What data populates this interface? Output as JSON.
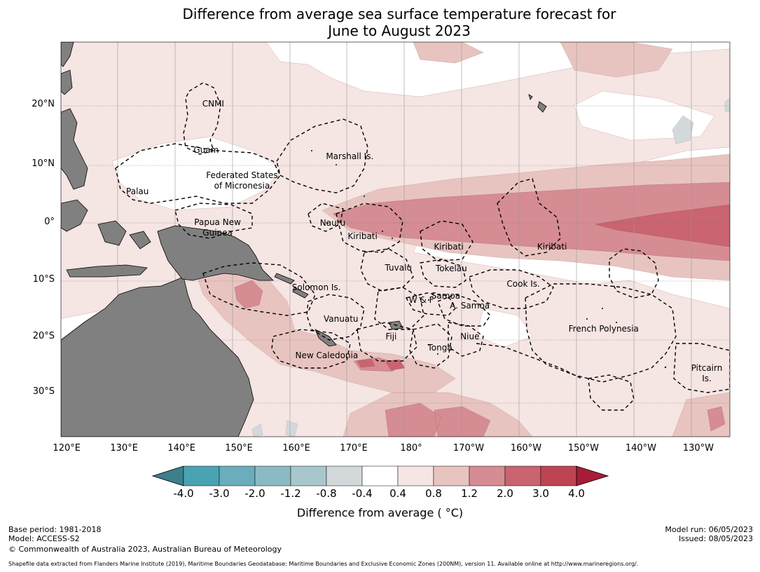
{
  "title": {
    "line1": "Difference from average sea surface temperature forecast for",
    "line2": "June to August 2023"
  },
  "map": {
    "lat_labels": [
      {
        "text": "20°N",
        "lat": 20
      },
      {
        "text": "10°N",
        "lat": 10
      },
      {
        "text": "0°",
        "lat": 0
      },
      {
        "text": "10°S",
        "lat": -10
      },
      {
        "text": "20°S",
        "lat": -20
      },
      {
        "text": "30°S",
        "lat": -30
      }
    ],
    "lon_labels": [
      {
        "text": "120°E",
        "lon": 120
      },
      {
        "text": "130°E",
        "lon": 130
      },
      {
        "text": "140°E",
        "lon": 140
      },
      {
        "text": "150°E",
        "lon": 150
      },
      {
        "text": "160°E",
        "lon": 160
      },
      {
        "text": "170°E",
        "lon": 170
      },
      {
        "text": "180°",
        "lon": 180
      },
      {
        "text": "170°W",
        "lon": 190
      },
      {
        "text": "160°W",
        "lon": 200
      },
      {
        "text": "150°W",
        "lon": 210
      },
      {
        "text": "140°W",
        "lon": 220
      },
      {
        "text": "130°W",
        "lon": 230
      }
    ],
    "places": [
      {
        "name": "CNMI",
        "lon": 145.5,
        "lat": 20.2
      },
      {
        "name": "Guam",
        "lon": 144.3,
        "lat": 12.4
      },
      {
        "name": "Marshall Is.",
        "lon": 169.3,
        "lat": 11.3
      },
      {
        "name": "Federated States\nof Micronesia",
        "lon": 150.5,
        "lat": 7.2
      },
      {
        "name": "Palau",
        "lon": 132.3,
        "lat": 5.3
      },
      {
        "name": "Papua New\nGuinea",
        "lon": 146.3,
        "lat": -0.8
      },
      {
        "name": "Nauru",
        "lon": 166.3,
        "lat": 0.0
      },
      {
        "name": "Kiribati",
        "lon": 171.5,
        "lat": -2.3
      },
      {
        "name": "Kiribati",
        "lon": 186.5,
        "lat": -4.2
      },
      {
        "name": "Kiribati",
        "lon": 204.5,
        "lat": -4.2
      },
      {
        "name": "Tuvalu",
        "lon": 177.8,
        "lat": -7.8
      },
      {
        "name": "Tokelau",
        "lon": 187.0,
        "lat": -8.0
      },
      {
        "name": "Solomon Is.",
        "lon": 163.5,
        "lat": -11.2
      },
      {
        "name": "Cook Is.",
        "lon": 199.5,
        "lat": -10.7
      },
      {
        "name": "Samoa",
        "lon": 186.0,
        "lat": -12.7
      },
      {
        "name": "W & F",
        "lon": 181.8,
        "lat": -13.5
      },
      {
        "name": "A. Samoa",
        "lon": 190.2,
        "lat": -14.5
      },
      {
        "name": "Vanuatu",
        "lon": 167.8,
        "lat": -16.8
      },
      {
        "name": "French Polynesia",
        "lon": 213.5,
        "lat": -18.6
      },
      {
        "name": "Fiji",
        "lon": 176.5,
        "lat": -19.9
      },
      {
        "name": "Niue",
        "lon": 190.2,
        "lat": -19.9
      },
      {
        "name": "Tonga",
        "lon": 185.0,
        "lat": -22.0
      },
      {
        "name": "New Caledonia",
        "lon": 165.3,
        "lat": -23.3
      },
      {
        "name": "Pitcairn\nIs.",
        "lon": 231.5,
        "lat": -26.6
      }
    ]
  },
  "legend": {
    "title": "Difference from average ( °C)",
    "ticks": [
      "-4.0",
      "-3.0",
      "-2.0",
      "-1.2",
      "-0.8",
      "-0.4",
      "0.4",
      "0.8",
      "1.2",
      "2.0",
      "3.0",
      "4.0"
    ],
    "colors": [
      "#3d7f8b",
      "#4aa3b3",
      "#6aadbb",
      "#8cbac4",
      "#a8c7cc",
      "#d3d9da",
      "#ffffff",
      "#f5e5e3",
      "#e8c4c0",
      "#d58c93",
      "#c96470",
      "#bd4553",
      "#a91c37"
    ]
  },
  "footer": {
    "left1": "Base period: 1981-2018",
    "left2": "Model: ACCESS-S2",
    "left3": "© Commonwealth of Australia 2023, Australian Bureau of Meteorology",
    "right1": "Model run: 06/05/2023",
    "right2": "Issued: 08/05/2023",
    "source": "Shapefile data extracted from Flanders Marine Institute (2019), Maritime Boundaries Geodatabase: Maritime Boundaries and Exclusive Economic Zones (200NM), version 11. Available online at http://www.marineregions.org/."
  }
}
